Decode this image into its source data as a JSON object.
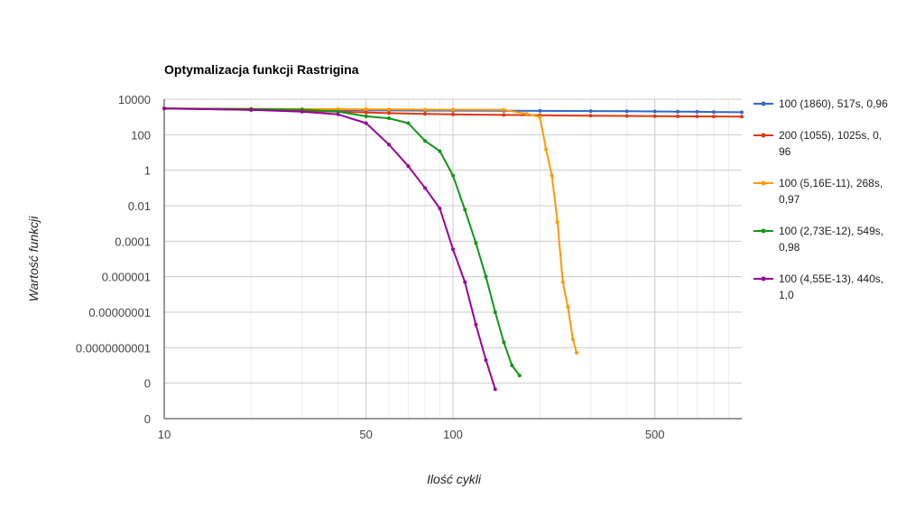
{
  "chart_data": {
    "type": "line",
    "title": "Optymalizacja funkcji Rastrigina",
    "xlabel": "Ilość cykli",
    "ylabel": "Wartość funkcji",
    "x_scale": "log",
    "y_scale": "log",
    "xlim": [
      10,
      1000
    ],
    "ylim": [
      1e-14,
      10000
    ],
    "x_ticks": [
      {
        "value": 10,
        "label": "10"
      },
      {
        "value": 50,
        "label": "50"
      },
      {
        "value": 100,
        "label": "100"
      },
      {
        "value": 500,
        "label": "500"
      }
    ],
    "y_ticks": [
      {
        "value": 10000,
        "label": "10000"
      },
      {
        "value": 100,
        "label": "100"
      },
      {
        "value": 1,
        "label": "1"
      },
      {
        "value": 0.01,
        "label": "0.01"
      },
      {
        "value": 0.0001,
        "label": "0.0001"
      },
      {
        "value": 1e-06,
        "label": "0.000001"
      },
      {
        "value": 1e-08,
        "label": "0.00000001"
      },
      {
        "value": 1e-10,
        "label": "0.0000000001"
      },
      {
        "value": 1e-12,
        "label": "0"
      },
      {
        "value": 1e-14,
        "label": "0"
      }
    ],
    "grid": true,
    "legend_position": "right",
    "series": [
      {
        "name": "100 (1860), 517s, 0,96",
        "color": "#3366cc",
        "x": [
          10,
          20,
          30,
          40,
          50,
          60,
          80,
          100,
          150,
          200,
          300,
          400,
          500,
          600,
          700,
          800,
          1000
        ],
        "y": [
          3000,
          2800,
          2600,
          2500,
          2400,
          2350,
          2300,
          2280,
          2250,
          2200,
          2150,
          2100,
          2050,
          2000,
          1960,
          1920,
          1860
        ]
      },
      {
        "name": "200 (1055), 1025s, 0, 96",
        "color": "#dc3912",
        "x": [
          10,
          20,
          30,
          40,
          50,
          60,
          80,
          100,
          150,
          200,
          300,
          400,
          500,
          600,
          700,
          800,
          1000
        ],
        "y": [
          3000,
          2500,
          2200,
          2000,
          1800,
          1650,
          1500,
          1400,
          1300,
          1250,
          1180,
          1140,
          1110,
          1090,
          1075,
          1065,
          1055
        ]
      },
      {
        "name": "100 (5,16E-11), 268s, 0,97",
        "color": "#ff9900",
        "x": [
          10,
          20,
          30,
          40,
          50,
          60,
          80,
          100,
          150,
          180,
          200,
          210,
          220,
          230,
          240,
          250,
          260,
          268
        ],
        "y": [
          3000,
          2900,
          2800,
          2750,
          2700,
          2650,
          2600,
          2580,
          2550,
          1500,
          1000,
          15,
          0.5,
          0.0012,
          5e-07,
          2e-08,
          3e-10,
          5.16e-11
        ]
      },
      {
        "name": "100 (2,73E-12), 549s, 0,98",
        "color": "#109618",
        "x": [
          10,
          20,
          30,
          40,
          50,
          60,
          70,
          80,
          90,
          100,
          110,
          120,
          130,
          140,
          150,
          160,
          170
        ],
        "y": [
          3000,
          2800,
          2600,
          2000,
          1100,
          850,
          450,
          45,
          12,
          0.5,
          0.006,
          8e-05,
          1e-06,
          1e-08,
          2e-10,
          1e-11,
          2.73e-12
        ]
      },
      {
        "name": "100 (4,55E-13), 440s, 1,0",
        "color": "#990099",
        "x": [
          10,
          20,
          30,
          40,
          50,
          60,
          70,
          80,
          90,
          100,
          110,
          120,
          130,
          140
        ],
        "y": [
          3000,
          2500,
          2000,
          1400,
          450,
          28,
          1.7,
          0.1,
          0.007,
          3.5e-05,
          5e-07,
          2e-09,
          2e-11,
          4.55e-13
        ]
      }
    ]
  }
}
